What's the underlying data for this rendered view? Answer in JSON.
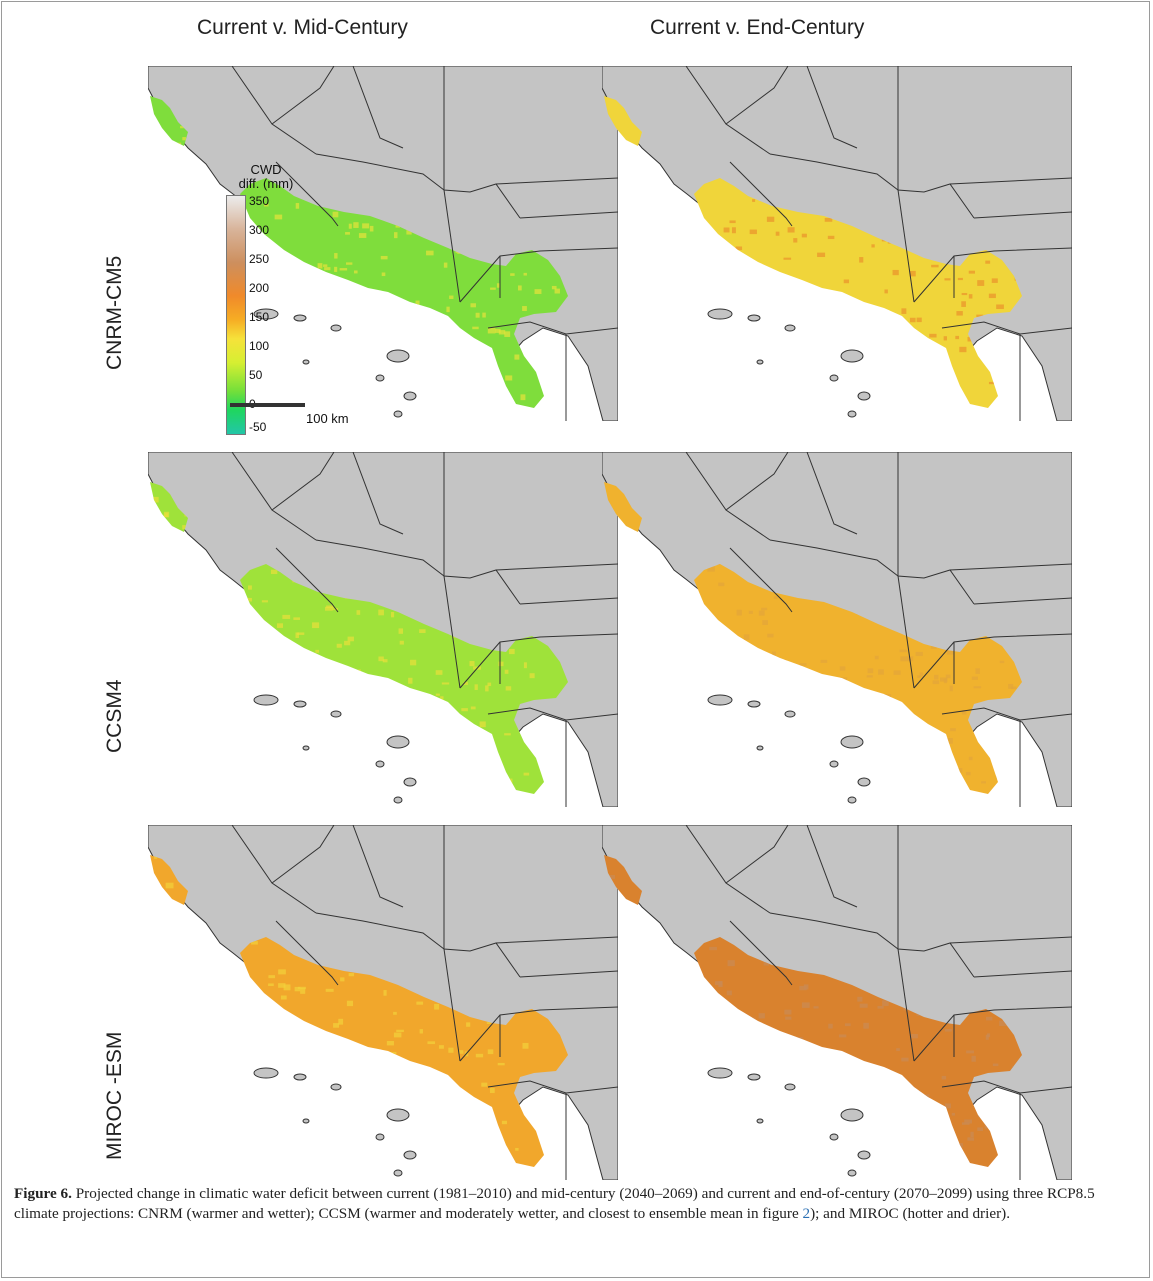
{
  "figure": {
    "column_titles": [
      "Current v. Mid-Century",
      "Current v. End-Century"
    ],
    "row_labels": [
      "CNRM-CM5",
      "CCSM4",
      "MIROC -ESM"
    ],
    "legend": {
      "title_line1": "CWD",
      "title_line2": "diff. (mm)",
      "ticks": [
        "350",
        "300",
        "250",
        "200",
        "150",
        "100",
        "50",
        "0",
        "-50"
      ],
      "scale_label": "100 km"
    },
    "panels": [
      {
        "model": "CNRM-CM5",
        "period": "Current v. Mid-Century",
        "dominant_color": "#7fdd3c",
        "accent_color": "#e7e23a"
      },
      {
        "model": "CNRM-CM5",
        "period": "Current v. End-Century",
        "dominant_color": "#f0d53a",
        "accent_color": "#e9922b"
      },
      {
        "model": "CCSM4",
        "period": "Current v. Mid-Century",
        "dominant_color": "#9fe23a",
        "accent_color": "#e9e03a"
      },
      {
        "model": "CCSM4",
        "period": "Current v. End-Century",
        "dominant_color": "#f0b22e",
        "accent_color": "#e2a53a"
      },
      {
        "model": "MIROC -ESM",
        "period": "Current v. Mid-Century",
        "dominant_color": "#f1a72c",
        "accent_color": "#f2d23a"
      },
      {
        "model": "MIROC -ESM",
        "period": "Current v. End-Century",
        "dominant_color": "#d9822e",
        "accent_color": "#c98a56"
      }
    ],
    "land_color": "#c4c4c4",
    "border_color": "#333333",
    "caption": {
      "label": "Figure 6.",
      "text_before_ref": " Projected change in climatic water deficit between current (1981–2010) and mid-century (2040–2069) and current and end-of-century (2070–2099) using three RCP8.5 climate projections: CNRM (warmer and wetter); CCSM (warmer and moderately wetter, and closest to ensemble mean in figure ",
      "ref": "2",
      "text_after_ref": "); and MIROC (hotter and drier)."
    }
  }
}
